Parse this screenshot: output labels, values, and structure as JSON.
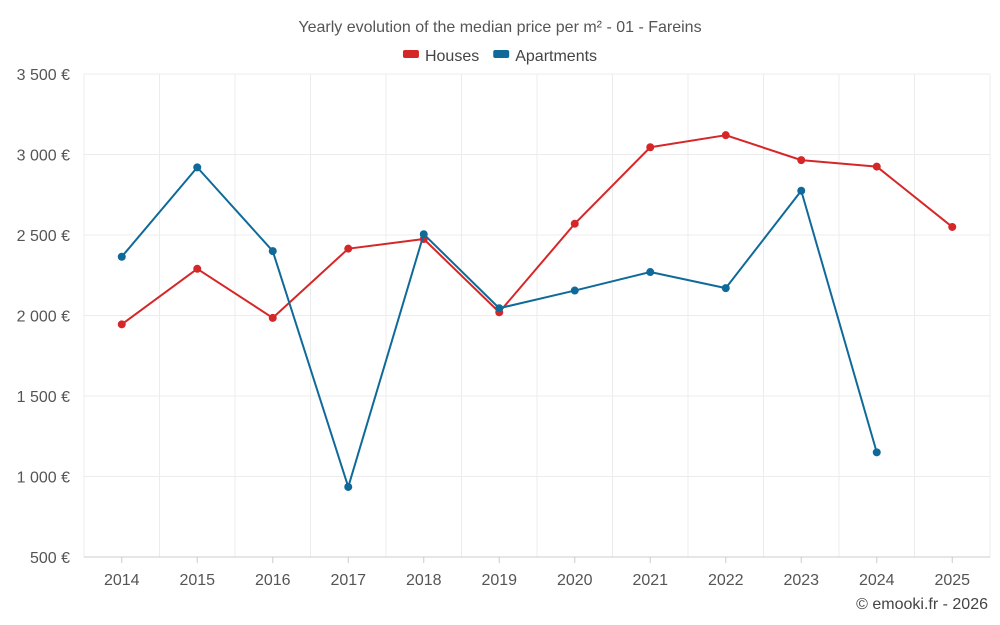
{
  "chart_data": {
    "type": "line",
    "title": "Yearly evolution of the median price per m² - 01 - Fareins",
    "categories": [
      "2014",
      "2015",
      "2016",
      "2017",
      "2018",
      "2019",
      "2020",
      "2021",
      "2022",
      "2023",
      "2024",
      "2025"
    ],
    "ylim": [
      500,
      3500
    ],
    "yticks": [
      500,
      1000,
      1500,
      2000,
      2500,
      3000,
      3500
    ],
    "ytick_labels": [
      "500 €",
      "1 000 €",
      "1 500 €",
      "2 000 €",
      "2 500 €",
      "3 000 €",
      "3 500 €"
    ],
    "grid": true,
    "legend_position": "top-center",
    "series": [
      {
        "name": "Houses",
        "color": "#d62728",
        "values": [
          1945,
          2290,
          1985,
          2415,
          2475,
          2020,
          2570,
          3045,
          3120,
          2965,
          2925,
          2550
        ]
      },
      {
        "name": "Apartments",
        "color": "#0f6a9a",
        "values": [
          2365,
          2920,
          2400,
          935,
          2505,
          2045,
          2155,
          2270,
          2170,
          2775,
          1150,
          null
        ]
      }
    ]
  },
  "credit": "© emooki.fr - 2026"
}
